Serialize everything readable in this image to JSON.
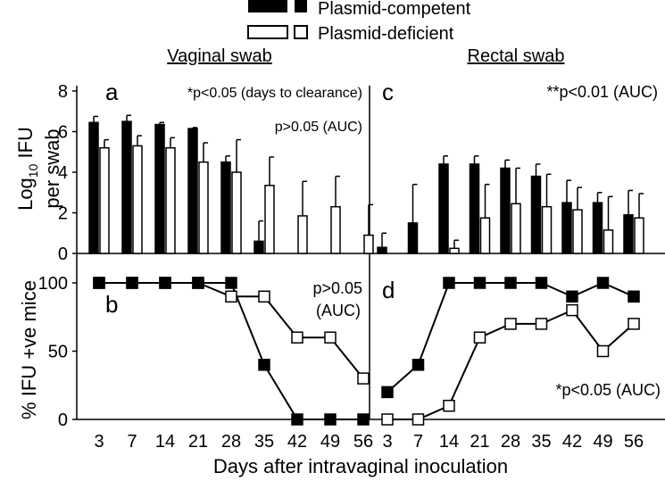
{
  "legend": {
    "competent_label": "Plasmid-competent",
    "deficient_label": "Plasmid-deficient"
  },
  "colors": {
    "competent": "#000000",
    "deficient": "#ffffff",
    "stroke": "#000000"
  },
  "x_axis": {
    "label": "Days after intravaginal inoculation",
    "days": [
      3,
      7,
      14,
      21,
      28,
      35,
      42,
      49,
      56
    ],
    "tick_labels": [
      "3",
      "7",
      "14",
      "21",
      "28",
      "35",
      "42",
      "49",
      "56"
    ]
  },
  "chart_data": [
    {
      "panel": "a",
      "type": "bar",
      "title": "Vaginal swab",
      "ylabel_prefix": "Log",
      "ylabel_sub": "10",
      "ylabel_suffix": " IFU",
      "ylabel_line2": "per swab",
      "ylim": [
        0,
        8
      ],
      "yticks": [
        "0",
        "2",
        "4",
        "6",
        "8"
      ],
      "annotations": [
        "*p<0.05 (days to clearance)",
        "p>0.05 (AUC)"
      ],
      "series": [
        {
          "name": "Plasmid-competent",
          "values": [
            6.45,
            6.5,
            6.35,
            6.15,
            4.5,
            0.6,
            0,
            0,
            0
          ],
          "errors": [
            0.3,
            0.3,
            0.1,
            0.05,
            0.3,
            1.0,
            0,
            0,
            0
          ]
        },
        {
          "name": "Plasmid-deficient",
          "values": [
            5.2,
            5.3,
            5.2,
            4.5,
            4.0,
            3.35,
            1.85,
            2.3,
            0.9
          ],
          "errors": [
            0.4,
            0.5,
            0.5,
            0.95,
            1.6,
            1.4,
            1.7,
            1.5,
            1.5
          ]
        }
      ]
    },
    {
      "panel": "b",
      "type": "line",
      "ylabel": "% IFU +ve mice",
      "ylim": [
        0,
        100
      ],
      "yticks": [
        "0",
        "50",
        "100"
      ],
      "annotations": [
        "p>0.05",
        "(AUC)"
      ],
      "series": [
        {
          "name": "Plasmid-competent",
          "values": [
            100,
            100,
            100,
            100,
            100,
            40,
            0,
            0,
            0
          ]
        },
        {
          "name": "Plasmid-deficient",
          "values": [
            100,
            100,
            100,
            100,
            90,
            90,
            60,
            60,
            30
          ]
        }
      ]
    },
    {
      "panel": "c",
      "type": "bar",
      "title": "Rectal swab",
      "ylim": [
        0,
        8
      ],
      "annotations": [
        "**p<0.01 (AUC)"
      ],
      "series": [
        {
          "name": "Plasmid-competent",
          "values": [
            0.3,
            1.5,
            4.4,
            4.4,
            4.2,
            3.8,
            2.5,
            2.5,
            1.9
          ],
          "errors": [
            0.7,
            1.9,
            0.4,
            0.4,
            0.4,
            0.6,
            1.1,
            0.5,
            1.2
          ]
        },
        {
          "name": "Plasmid-deficient",
          "values": [
            0,
            0,
            0.25,
            1.75,
            2.45,
            2.3,
            2.15,
            1.15,
            1.75
          ],
          "errors": [
            0,
            0,
            0.4,
            1.65,
            1.75,
            1.6,
            1.1,
            1.65,
            1.2
          ]
        }
      ]
    },
    {
      "panel": "d",
      "type": "line",
      "ylim": [
        0,
        100
      ],
      "annotations": [
        "*p<0.05 (AUC)"
      ],
      "series": [
        {
          "name": "Plasmid-competent",
          "values": [
            20,
            40,
            100,
            100,
            100,
            100,
            90,
            100,
            90
          ]
        },
        {
          "name": "Plasmid-deficient",
          "values": [
            0,
            0,
            10,
            60,
            70,
            70,
            80,
            50,
            70
          ]
        }
      ]
    }
  ]
}
